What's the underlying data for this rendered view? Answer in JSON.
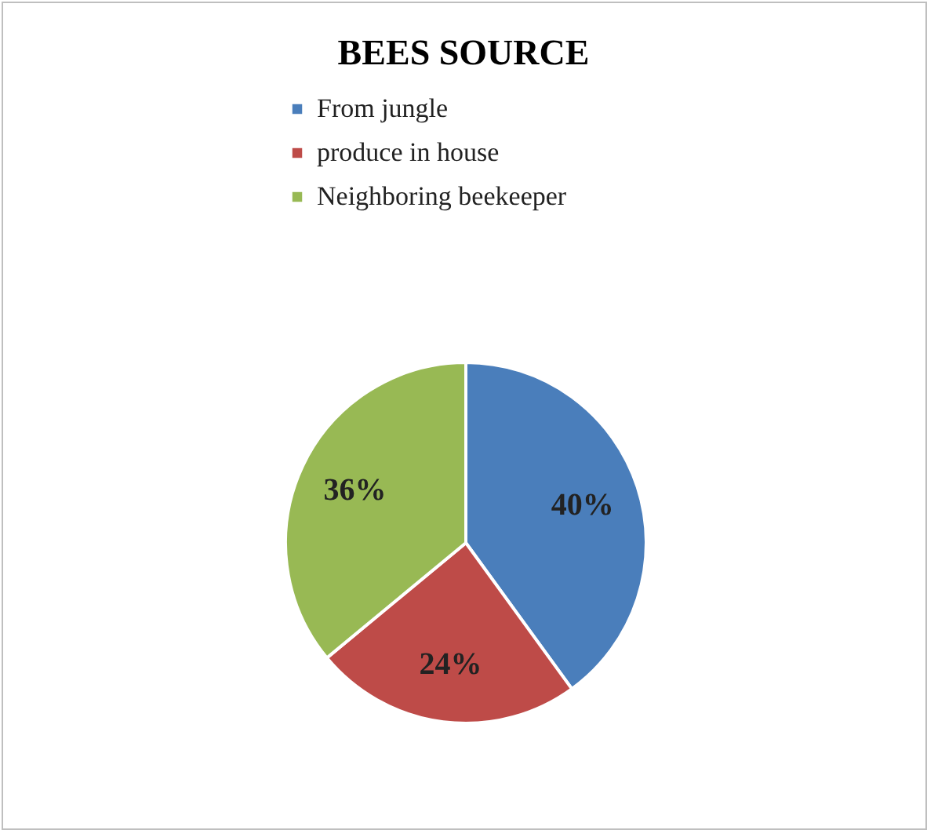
{
  "chart_data": {
    "type": "pie",
    "title": "BEES SOURCE",
    "categories": [
      "From jungle",
      "produce in house",
      "Neighboring beekeeper"
    ],
    "values": [
      40,
      24,
      36
    ],
    "colors": [
      "#4a7ebb",
      "#be4b48",
      "#98b954"
    ],
    "value_labels": [
      "40%",
      "24%",
      "36%"
    ],
    "legend": "top"
  }
}
